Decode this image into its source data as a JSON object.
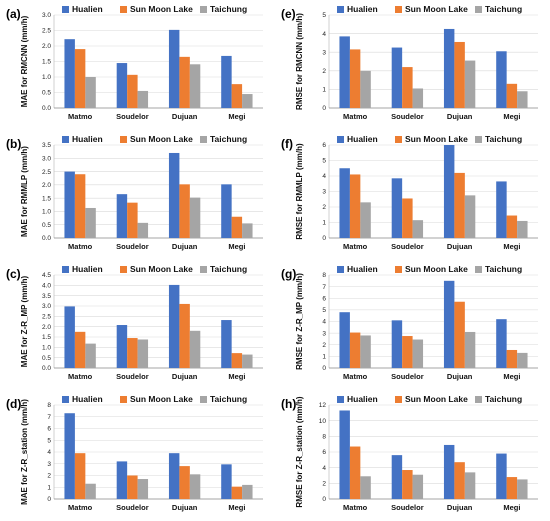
{
  "colors": {
    "Hualien": "#4472C4",
    "Sun Moon Lake": "#ED7D31",
    "Taichung": "#A5A5A5"
  },
  "chart_data": [
    {
      "panel": "(a)",
      "type": "bar",
      "ylabel": "MAE for RMCNN (mm/h)",
      "ylim": [
        0,
        3.0
      ],
      "ystep": 0.5,
      "decimals": 1,
      "categories": [
        "Matmo",
        "Soudelor",
        "Dujuan",
        "Megi"
      ],
      "series": [
        {
          "name": "Hualien",
          "values": [
            2.22,
            1.45,
            2.52,
            1.68
          ]
        },
        {
          "name": "Sun Moon Lake",
          "values": [
            1.9,
            1.07,
            1.65,
            0.77
          ]
        },
        {
          "name": "Taichung",
          "values": [
            1.0,
            0.55,
            1.41,
            0.45
          ]
        }
      ]
    },
    {
      "panel": "(e)",
      "type": "bar",
      "ylabel": "RMSE for RMCNN (mm/h)",
      "ylim": [
        0,
        5
      ],
      "ystep": 1,
      "decimals": 0,
      "categories": [
        "Matmo",
        "Soudelor",
        "Dujuan",
        "Megi"
      ],
      "series": [
        {
          "name": "Hualien",
          "values": [
            3.85,
            3.25,
            4.25,
            3.05
          ]
        },
        {
          "name": "Sun Moon Lake",
          "values": [
            3.15,
            2.2,
            3.55,
            1.3
          ]
        },
        {
          "name": "Taichung",
          "values": [
            2.0,
            1.05,
            2.55,
            0.9
          ]
        }
      ]
    },
    {
      "panel": "(b)",
      "type": "bar",
      "ylabel": "MAE for RMMLP (mm/h)",
      "ylim": [
        0,
        3.5
      ],
      "ystep": 0.5,
      "decimals": 1,
      "categories": [
        "Matmo",
        "Soudelor",
        "Dujuan",
        "Megi"
      ],
      "series": [
        {
          "name": "Hualien",
          "values": [
            2.5,
            1.65,
            3.2,
            2.02
          ]
        },
        {
          "name": "Sun Moon Lake",
          "values": [
            2.4,
            1.33,
            2.02,
            0.8
          ]
        },
        {
          "name": "Taichung",
          "values": [
            1.13,
            0.57,
            1.52,
            0.55
          ]
        }
      ]
    },
    {
      "panel": "(f)",
      "type": "bar",
      "ylabel": "RMSE for RMMLP (mm/h)",
      "ylim": [
        0,
        6
      ],
      "ystep": 1,
      "decimals": 0,
      "categories": [
        "Matmo",
        "Soudelor",
        "Dujuan",
        "Megi"
      ],
      "series": [
        {
          "name": "Hualien",
          "values": [
            4.5,
            3.85,
            6.0,
            3.65
          ]
        },
        {
          "name": "Sun Moon Lake",
          "values": [
            4.1,
            2.55,
            4.2,
            1.45
          ]
        },
        {
          "name": "Taichung",
          "values": [
            2.3,
            1.15,
            2.75,
            1.1
          ]
        }
      ]
    },
    {
      "panel": "(c)",
      "type": "bar",
      "ylabel": "MAE for Z-R_MP (mm/h)",
      "ylim": [
        0,
        4.5
      ],
      "ystep": 0.5,
      "decimals": 1,
      "categories": [
        "Matmo",
        "Soudelor",
        "Dujuan",
        "Megi"
      ],
      "series": [
        {
          "name": "Hualien",
          "values": [
            2.98,
            2.08,
            4.02,
            2.32
          ]
        },
        {
          "name": "Sun Moon Lake",
          "values": [
            1.75,
            1.45,
            3.1,
            0.72
          ]
        },
        {
          "name": "Taichung",
          "values": [
            1.18,
            1.38,
            1.8,
            0.65
          ]
        }
      ]
    },
    {
      "panel": "(g)",
      "type": "bar",
      "ylabel": "RMSE for Z-R_MP (mm/h)",
      "ylim": [
        0,
        8
      ],
      "ystep": 1,
      "decimals": 0,
      "categories": [
        "Matmo",
        "Soudelor",
        "Dujuan",
        "Megi"
      ],
      "series": [
        {
          "name": "Hualien",
          "values": [
            4.8,
            4.1,
            7.5,
            4.2
          ]
        },
        {
          "name": "Sun Moon Lake",
          "values": [
            3.05,
            2.75,
            5.7,
            1.55
          ]
        },
        {
          "name": "Taichung",
          "values": [
            2.8,
            2.45,
            3.1,
            1.3
          ]
        }
      ]
    },
    {
      "panel": "(d)",
      "type": "bar",
      "ylabel": "MAE for Z-R_station (mm/h)",
      "ylim": [
        0,
        8
      ],
      "ystep": 1,
      "decimals": 0,
      "categories": [
        "Matmo",
        "Soudelor",
        "Dujuan",
        "Megi"
      ],
      "series": [
        {
          "name": "Hualien",
          "values": [
            7.3,
            3.2,
            3.9,
            2.95
          ]
        },
        {
          "name": "Sun Moon Lake",
          "values": [
            3.9,
            2.0,
            2.8,
            1.05
          ]
        },
        {
          "name": "Taichung",
          "values": [
            1.3,
            1.7,
            2.1,
            1.2
          ]
        }
      ]
    },
    {
      "panel": "(h)",
      "type": "bar",
      "ylabel": "RMSE for Z-R_station (mm/h)",
      "ylim": [
        0,
        12
      ],
      "ystep": 2,
      "decimals": 0,
      "categories": [
        "Matmo",
        "Soudelor",
        "Dujuan",
        "Megi"
      ],
      "series": [
        {
          "name": "Hualien",
          "values": [
            11.3,
            5.6,
            6.9,
            5.8
          ]
        },
        {
          "name": "Sun Moon Lake",
          "values": [
            6.7,
            3.7,
            4.7,
            2.8
          ]
        },
        {
          "name": "Taichung",
          "values": [
            2.9,
            3.1,
            3.4,
            2.5
          ]
        }
      ]
    }
  ]
}
